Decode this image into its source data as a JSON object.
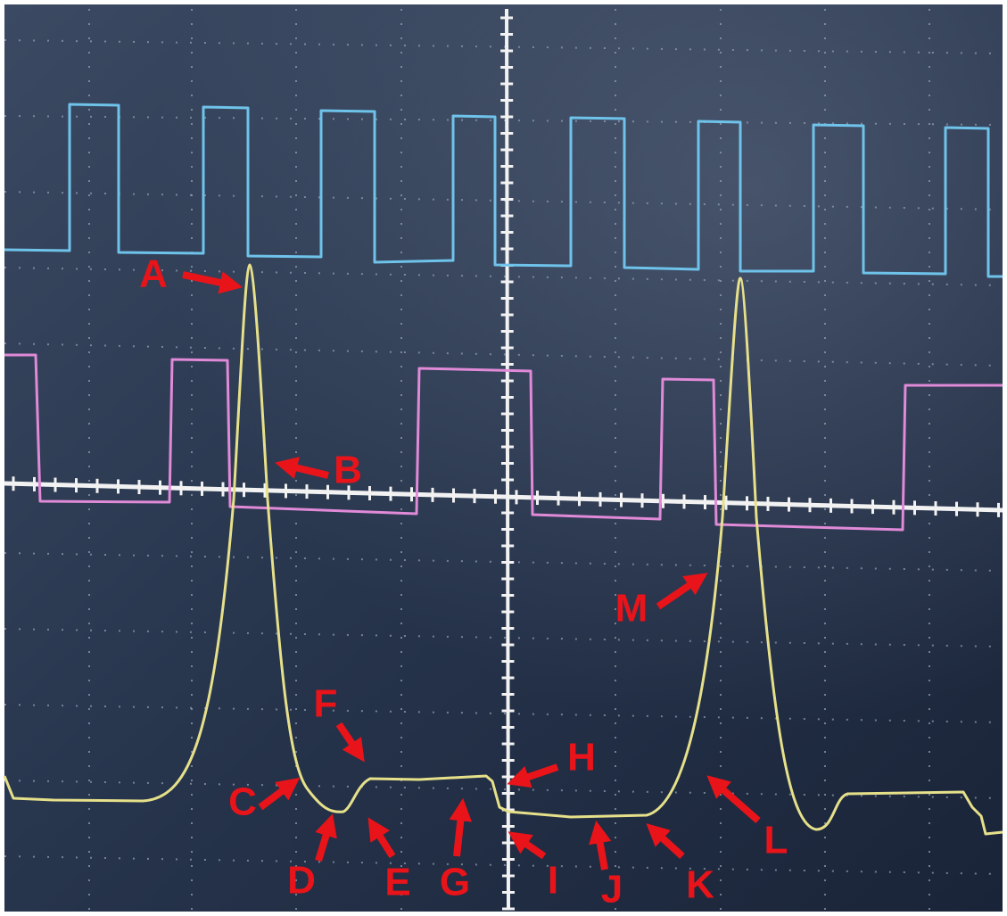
{
  "labels": [
    "A",
    "B",
    "C",
    "D",
    "E",
    "F",
    "G",
    "H",
    "I",
    "J",
    "K",
    "L",
    "M"
  ]
}
